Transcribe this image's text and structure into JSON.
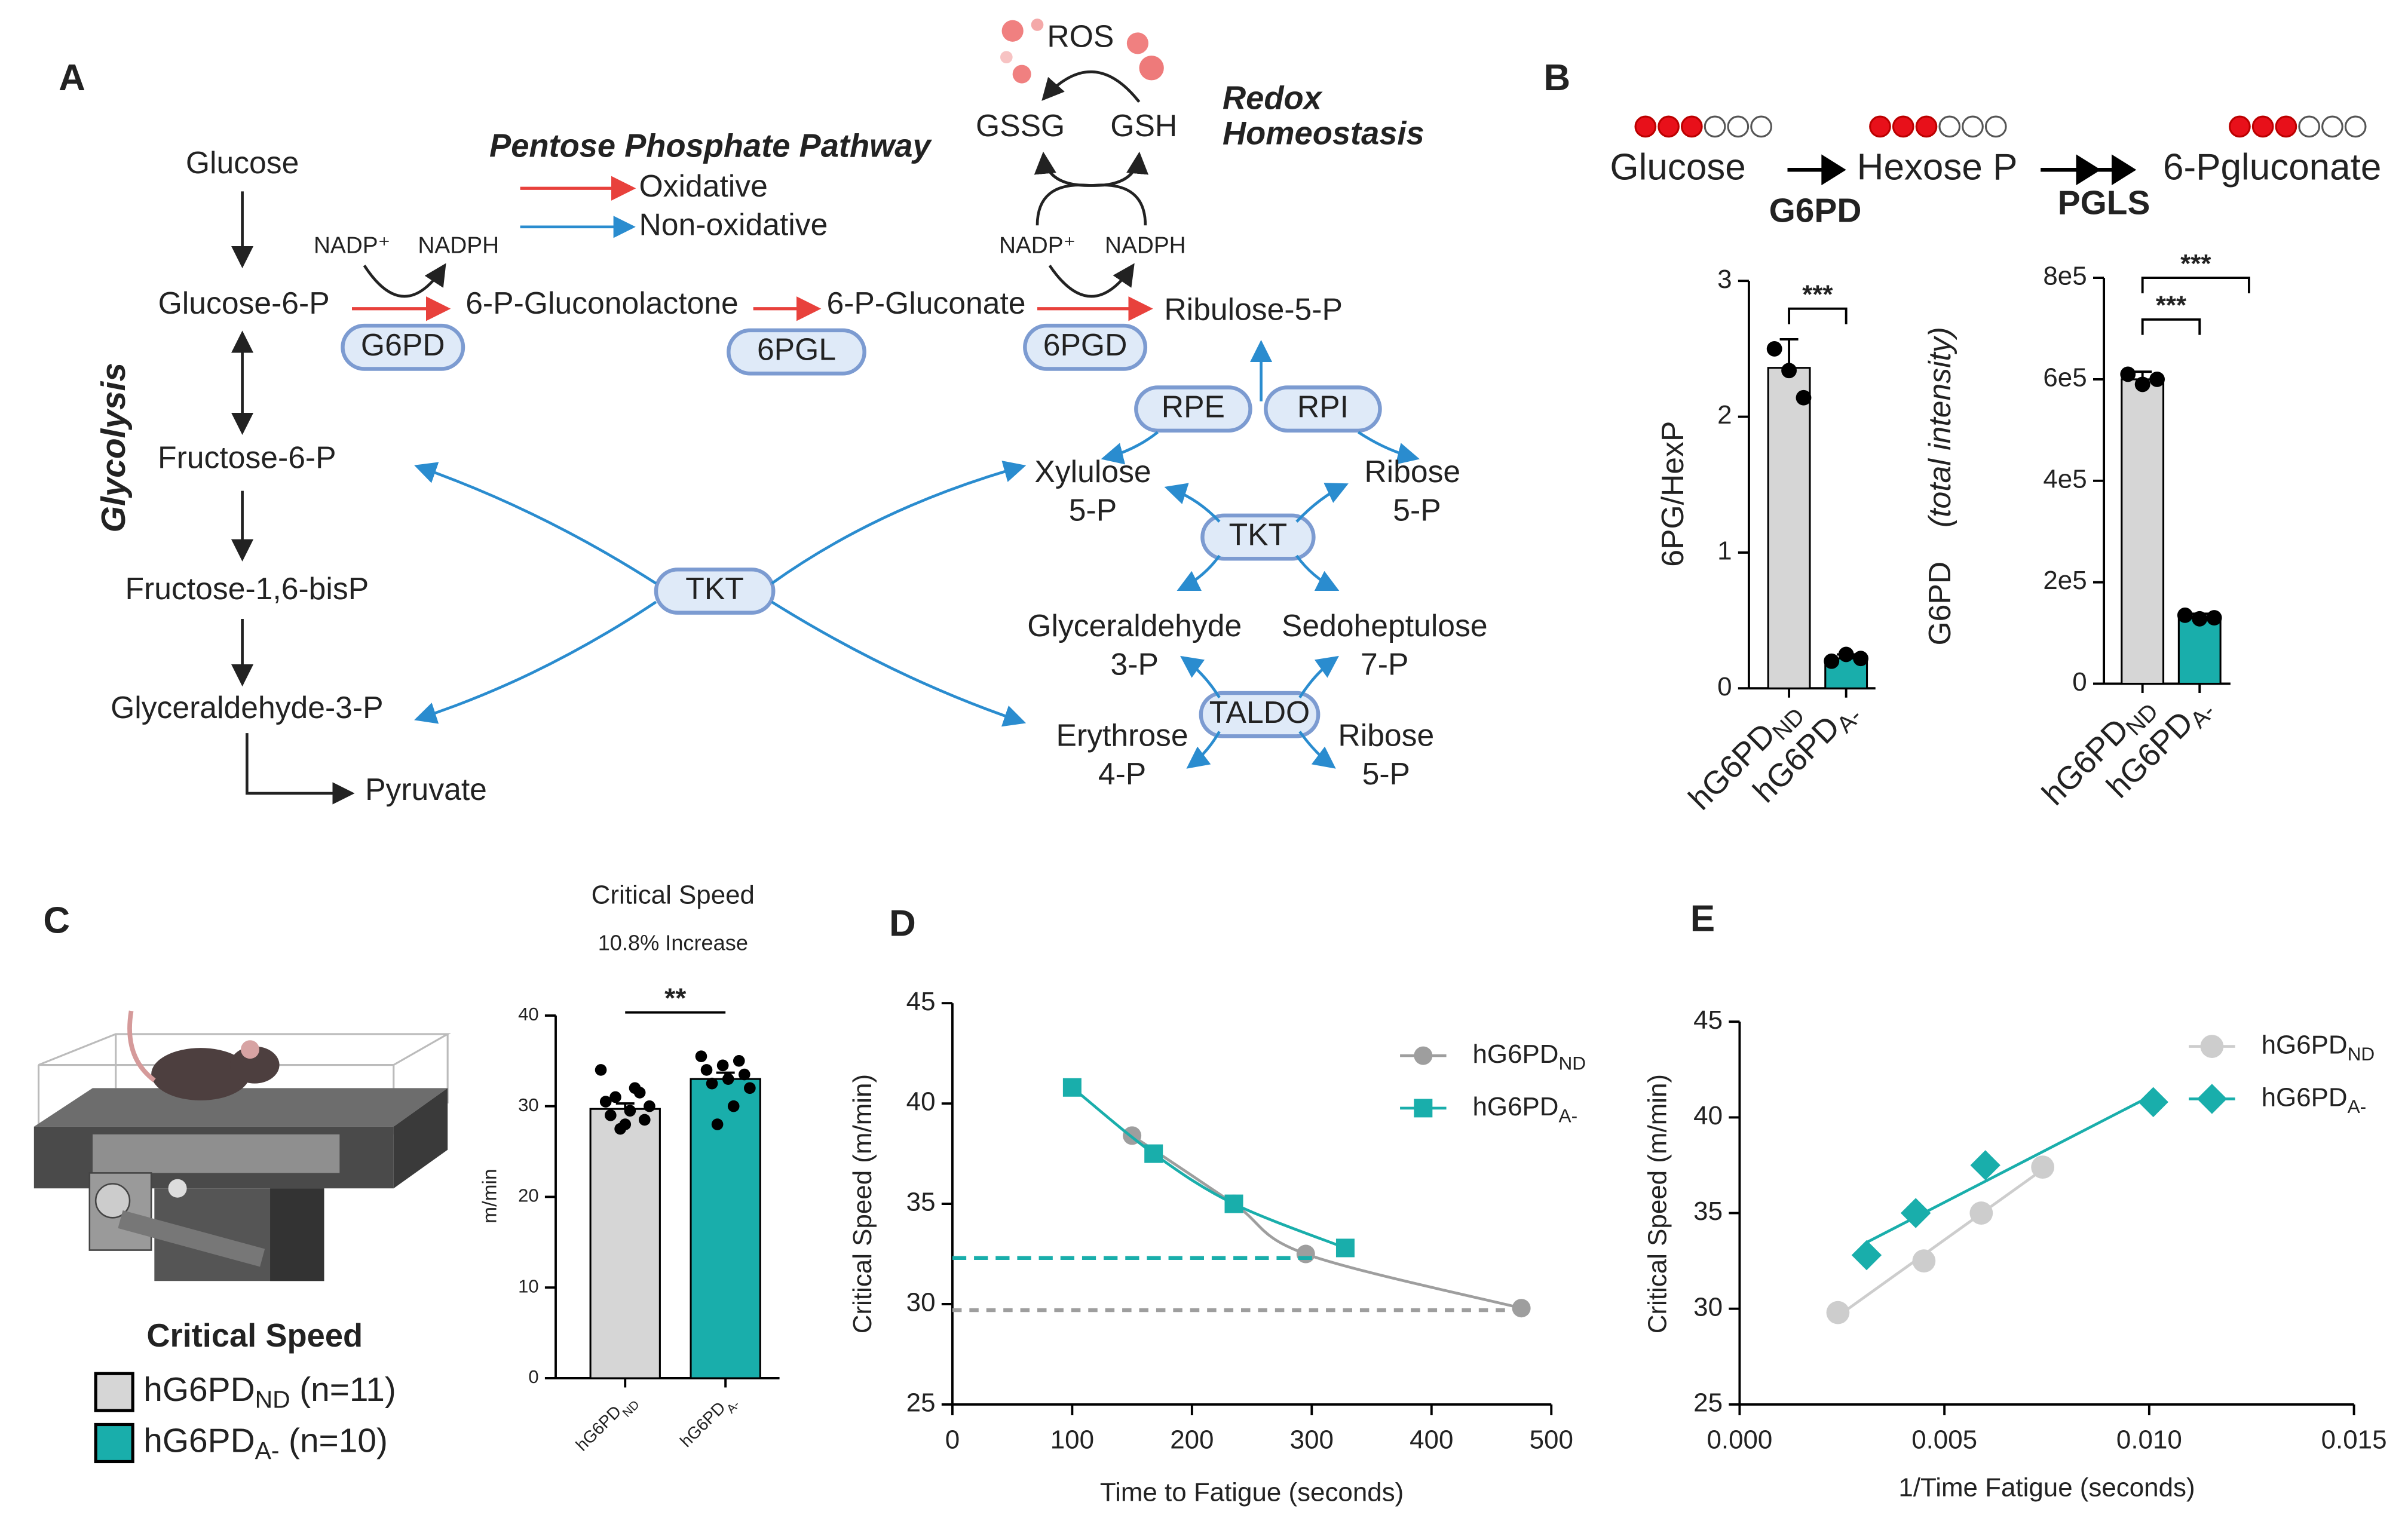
{
  "panel_labels": [
    "A",
    "B",
    "C",
    "D",
    "E"
  ],
  "diagram": {
    "glycolysis": [
      "Glucose",
      "Glucose-6-P",
      "Fructose-6-P",
      "Fructose-1,6-bisP",
      "Glyceraldehyde-3-P",
      "Pyruvate"
    ],
    "glycolysis_label": "Glycolysis",
    "ppp_title": "Pentose Phosphate Pathway",
    "legend": [
      "Oxidative",
      "Non-oxidative"
    ],
    "oxidative": [
      "6-P-Gluconolactone",
      "6-P-Gluconate",
      "Ribulose-5-P"
    ],
    "cofactors": [
      "NADP⁺",
      "NADPH",
      "NADP⁺",
      "NADPH"
    ],
    "enzymes": [
      "G6PD",
      "6PGL",
      "6PGD",
      "RPE",
      "RPI",
      "TKT",
      "TKT",
      "TALDO"
    ],
    "redox": [
      "ROS",
      "GSSG",
      "GSH"
    ],
    "redox_title": [
      "Redox",
      "Homeostasis"
    ],
    "non_oxidative": [
      [
        "Xylulose",
        "5-P"
      ],
      [
        "Ribose",
        "5-P"
      ],
      [
        "Glyceraldehyde",
        "3-P"
      ],
      [
        "Sedoheptulose",
        "7-P"
      ],
      [
        "Erythrose",
        "4-P"
      ],
      [
        "Ribose",
        "5-P"
      ]
    ]
  },
  "panel_b_pathway": {
    "metabolites": [
      "Glucose",
      "Hexose P",
      "6-Pgluconate"
    ],
    "enzymes": [
      "G6PD",
      "PGLS"
    ],
    "labeled_carbons": [
      3,
      3,
      3
    ],
    "total_carbons": [
      6,
      6,
      6
    ]
  },
  "chart_data": [
    {
      "type": "bar",
      "ylabel": [
        "6PG/HexP"
      ],
      "categories": [
        "hG6PD",
        "hG6PD"
      ],
      "category_subscripts": [
        "ND",
        "A-"
      ],
      "colors": [
        "#d6d6d6",
        "#19aeab"
      ],
      "values": [
        2.36,
        0.22
      ],
      "errors": [
        0.21,
        0.03
      ],
      "points": [
        [
          2.5,
          2.34,
          2.14
        ],
        [
          0.2,
          0.25,
          0.22
        ]
      ],
      "ylim": [
        0,
        3
      ],
      "yticks": [
        0,
        1,
        2,
        3
      ],
      "significance": [
        "***"
      ]
    },
    {
      "type": "bar",
      "ylabel": [
        "G6PD",
        "(total intensity)"
      ],
      "categories": [
        "hG6PD",
        "hG6PD"
      ],
      "category_subscripts": [
        "ND",
        "A-"
      ],
      "colors": [
        "#d6d6d6",
        "#19aeab"
      ],
      "values": [
        600000,
        130000
      ],
      "errors": [
        15000,
        8000
      ],
      "points": [
        [
          610000,
          590000,
          600000
        ],
        [
          135000,
          128000,
          130000
        ]
      ],
      "ylim": [
        0,
        800000
      ],
      "yticks": [
        0,
        {
          "value": 200000,
          "label": "2e5"
        },
        {
          "value": 400000,
          "label": "4e5"
        },
        {
          "value": 600000,
          "label": "6e5"
        },
        {
          "value": 800000,
          "label": "8e5"
        }
      ],
      "significance": [
        "***",
        "***"
      ]
    },
    {
      "type": "bar",
      "title": "Critical Speed",
      "subtitle": "10.8% Increase",
      "ylabel": [
        "m/min"
      ],
      "categories": [
        "hG6PD",
        "hG6PD"
      ],
      "category_subscripts": [
        "ND",
        "A-"
      ],
      "colors": [
        "#d6d6d6",
        "#19aeab"
      ],
      "values": [
        29.7,
        33.0
      ],
      "errors": [
        0.6,
        0.7
      ],
      "points": [
        [
          34,
          32,
          31,
          30,
          29.5,
          29,
          28.5,
          28,
          30.5,
          31.5,
          27.5
        ],
        [
          35.5,
          35,
          34.5,
          34,
          33.5,
          33,
          32.5,
          32,
          30,
          28
        ]
      ],
      "ylim": [
        0,
        40
      ],
      "yticks": [
        0,
        10,
        20,
        30,
        40
      ],
      "significance": [
        "**"
      ],
      "legend_title": "Critical Speed",
      "legend_suffix": [
        "(n=11)",
        "(n=10)"
      ]
    },
    {
      "type": "line",
      "xlabel": "Time to Fatigue (seconds)",
      "ylabel": "Critical Speed (m/min)",
      "xlim": [
        0,
        500
      ],
      "xticks": [
        0,
        100,
        200,
        300,
        400,
        500
      ],
      "ylim": [
        25,
        45
      ],
      "yticks": [
        25,
        30,
        35,
        40,
        45
      ],
      "series": [
        {
          "name": "hG6PD",
          "subscript": "ND",
          "color": "#9e9e9e",
          "marker": "circle",
          "x": [
            150,
            235,
            295,
            475
          ],
          "values": [
            38.4,
            35,
            32.5,
            29.8
          ],
          "asymptote": 29.7
        },
        {
          "name": "hG6PD",
          "subscript": "A-",
          "color": "#19aeab",
          "marker": "square",
          "x": [
            100,
            168,
            235,
            328
          ],
          "values": [
            40.8,
            37.5,
            35,
            32.8
          ],
          "asymptote": 32.3
        }
      ]
    },
    {
      "type": "scatter",
      "xlabel": "1/Time Fatigue (seconds)",
      "ylabel": "Critical Speed (m/min)",
      "xlim": [
        0,
        0.015
      ],
      "xticks": [
        {
          "value": 0,
          "label": "0.000"
        },
        0.005,
        {
          "value": 0.01,
          "label": "0.010"
        },
        0.015
      ],
      "ylim": [
        25,
        45
      ],
      "yticks": [
        25,
        30,
        35,
        40,
        45
      ],
      "series": [
        {
          "name": "hG6PD",
          "subscript": "ND",
          "color": "#cdcdcd",
          "marker": "circle",
          "x": [
            0.0024,
            0.0045,
            0.0059,
            0.0074
          ],
          "values": [
            29.8,
            32.5,
            35,
            37.4
          ]
        },
        {
          "name": "hG6PD",
          "subscript": "A-",
          "color": "#19aeab",
          "marker": "diamond",
          "x": [
            0.0031,
            0.0043,
            0.006,
            0.0101
          ],
          "values": [
            32.8,
            35,
            37.5,
            40.8
          ]
        }
      ]
    }
  ]
}
